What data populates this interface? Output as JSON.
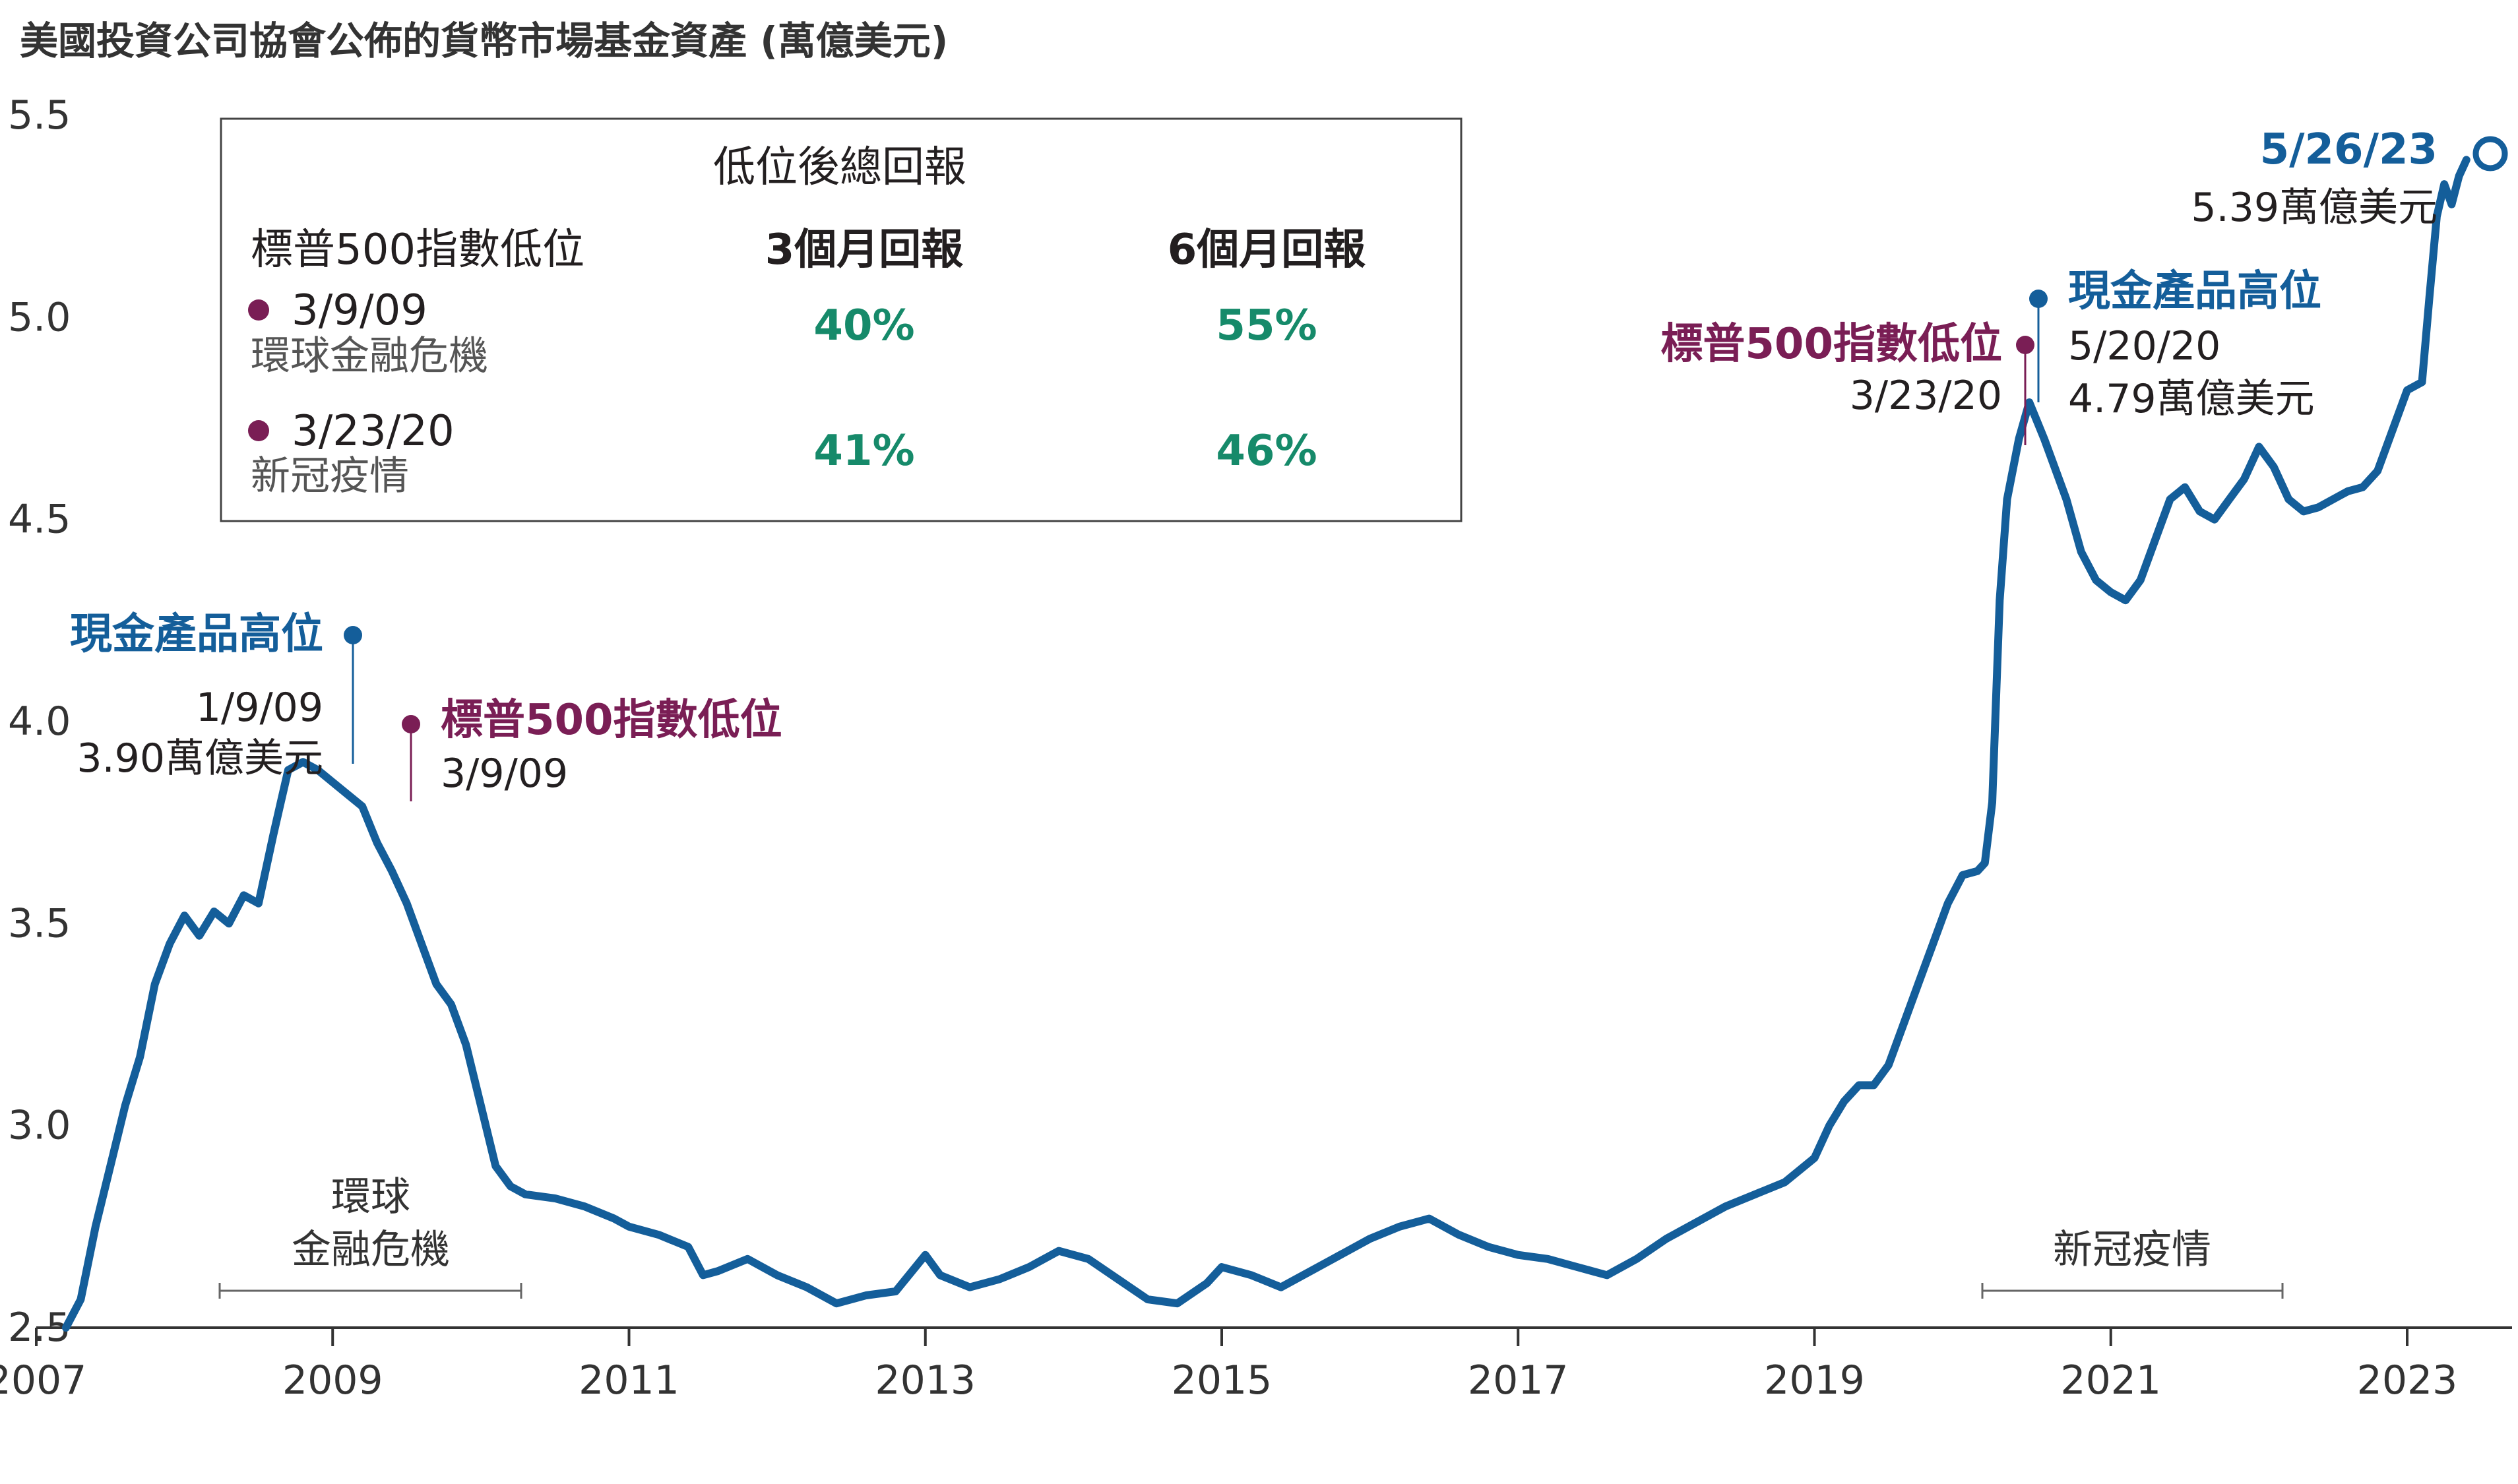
{
  "chart_data": {
    "type": "line",
    "title": "美國投資公司協會公佈的貨幣市場基金資產 (萬億美元)",
    "xlabel": "",
    "ylabel": "",
    "ylim": [
      2.5,
      5.5
    ],
    "xlim": [
      2007.0,
      2023.65
    ],
    "yticks": [
      "2.5",
      "3.0",
      "3.5",
      "4.0",
      "4.5",
      "5.0",
      "5.5"
    ],
    "xticks": [
      "2007",
      "2009",
      "2011",
      "2013",
      "2015",
      "2017",
      "2019",
      "2021",
      "2023"
    ],
    "grid": false,
    "color": "#145e9a",
    "series": [
      {
        "x": [
          2007.2,
          2007.3,
          2007.4,
          2007.5,
          2007.6,
          2007.7,
          2007.8,
          2007.9,
          2008.0,
          2008.1,
          2008.2,
          2008.3,
          2008.4,
          2008.5,
          2008.6,
          2008.65,
          2008.7,
          2008.8,
          2008.9,
          2009.0,
          2009.1,
          2009.2,
          2009.3,
          2009.4,
          2009.5,
          2009.6,
          2009.7,
          2009.8,
          2009.9,
          2010.0,
          2010.1,
          2010.2,
          2010.3,
          2010.5,
          2010.7,
          2010.9,
          2011.0,
          2011.2,
          2011.4,
          2011.5,
          2011.6,
          2011.8,
          2012.0,
          2012.2,
          2012.4,
          2012.6,
          2012.8,
          2013.0,
          2013.1,
          2013.3,
          2013.5,
          2013.7,
          2013.9,
          2014.1,
          2014.3,
          2014.5,
          2014.7,
          2014.9,
          2015.0,
          2015.2,
          2015.4,
          2015.6,
          2015.8,
          2016.0,
          2016.2,
          2016.4,
          2016.6,
          2016.8,
          2017.0,
          2017.2,
          2017.4,
          2017.6,
          2017.8,
          2018.0,
          2018.2,
          2018.4,
          2018.6,
          2018.8,
          2019.0,
          2019.1,
          2019.2,
          2019.3,
          2019.4,
          2019.5,
          2019.6,
          2019.7,
          2019.8,
          2019.9,
          2020.0,
          2020.1,
          2020.15,
          2020.2,
          2020.25,
          2020.3,
          2020.38,
          2020.45,
          2020.55,
          2020.7,
          2020.8,
          2020.9,
          2021.0,
          2021.1,
          2021.2,
          2021.3,
          2021.4,
          2021.5,
          2021.6,
          2021.7,
          2021.8,
          2021.9,
          2022.0,
          2022.1,
          2022.2,
          2022.3,
          2022.4,
          2022.5,
          2022.6,
          2022.7,
          2022.8,
          2022.9,
          2023.0,
          2023.1,
          2023.15,
          2023.2,
          2023.25,
          2023.3,
          2023.35,
          2023.4
        ],
        "y": [
          2.5,
          2.57,
          2.75,
          2.9,
          3.05,
          3.17,
          3.35,
          3.45,
          3.52,
          3.47,
          3.53,
          3.5,
          3.57,
          3.55,
          3.72,
          3.8,
          3.88,
          3.9,
          3.88,
          3.85,
          3.82,
          3.79,
          3.7,
          3.63,
          3.55,
          3.45,
          3.35,
          3.3,
          3.2,
          3.05,
          2.9,
          2.85,
          2.83,
          2.82,
          2.8,
          2.77,
          2.75,
          2.73,
          2.7,
          2.63,
          2.64,
          2.67,
          2.63,
          2.6,
          2.56,
          2.58,
          2.59,
          2.68,
          2.63,
          2.6,
          2.62,
          2.65,
          2.69,
          2.67,
          2.62,
          2.57,
          2.56,
          2.61,
          2.65,
          2.63,
          2.6,
          2.64,
          2.68,
          2.72,
          2.75,
          2.77,
          2.73,
          2.7,
          2.68,
          2.67,
          2.65,
          2.63,
          2.67,
          2.72,
          2.76,
          2.8,
          2.83,
          2.86,
          2.92,
          3.0,
          3.06,
          3.1,
          3.1,
          3.15,
          3.25,
          3.35,
          3.45,
          3.55,
          3.62,
          3.63,
          3.65,
          3.8,
          4.3,
          4.55,
          4.7,
          4.79,
          4.7,
          4.55,
          4.42,
          4.35,
          4.32,
          4.3,
          4.35,
          4.45,
          4.55,
          4.58,
          4.52,
          4.5,
          4.55,
          4.6,
          4.68,
          4.63,
          4.55,
          4.52,
          4.53,
          4.55,
          4.57,
          4.58,
          4.62,
          4.72,
          4.82,
          4.84,
          5.05,
          5.25,
          5.33,
          5.28,
          5.35,
          5.39
        ]
      }
    ],
    "annotations": {
      "peak1_title": "現金產品高位",
      "peak1_date": "1/9/09",
      "peak1_value": "3.90萬億美元",
      "trough1_title": "標普500指數低位",
      "trough1_date": "3/9/09",
      "trough2_title": "標普500指數低位",
      "trough2_date": "3/23/20",
      "peak2_title": "現金產品高位",
      "peak2_date": "5/20/20",
      "peak2_value": "4.79萬億美元",
      "end_date": "5/26/23",
      "end_value": "5.39萬億美元",
      "period1_line1": "環球",
      "period1_line2": "金融危機",
      "period2": "新冠疫情"
    },
    "legend_table": {
      "header": "低位後總回報",
      "col1": "標普500指數低位",
      "col2": "3個月回報",
      "col3": "6個月回報",
      "rows": [
        {
          "date": "3/9/09",
          "event": "環球金融危機",
          "r3": "40%",
          "r6": "55%"
        },
        {
          "date": "3/23/20",
          "event": "新冠疫情",
          "r3": "41%",
          "r6": "46%"
        }
      ]
    },
    "colors": {
      "line": "#145e9a",
      "high": "#145e9a",
      "low": "#7a1e55",
      "returns": "#168a6a"
    }
  }
}
